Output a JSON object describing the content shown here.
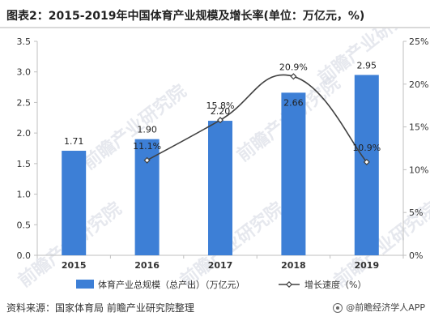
{
  "header": {
    "title": "图表2：2015-2019年中国体育产业规模及增长率(单位：万亿元，%)"
  },
  "chart_data": {
    "type": "bar",
    "categories": [
      "2015",
      "2016",
      "2017",
      "2018",
      "2019"
    ],
    "series": [
      {
        "name": "体育产业总规模（总产出）（万亿元）",
        "type": "bar",
        "axis": "left",
        "values": [
          1.71,
          1.9,
          2.2,
          2.66,
          2.95
        ],
        "labels": [
          "1.71",
          "1.90",
          "2.20",
          "2.66",
          "2.95"
        ],
        "color": "#3d7fd6"
      },
      {
        "name": "增长速度（%）",
        "type": "line",
        "axis": "right",
        "values": [
          null,
          11.1,
          15.8,
          20.9,
          10.9
        ],
        "labels": [
          "",
          "11.1%",
          "15.8%",
          "20.9%",
          "10.9%"
        ],
        "color": "#404040"
      }
    ],
    "y_left": {
      "ylim": [
        0,
        3.5
      ],
      "ticks": [
        "0.0",
        "0.5",
        "1.0",
        "1.5",
        "2.0",
        "2.5",
        "3.0",
        "3.5"
      ]
    },
    "y_right": {
      "ylim": [
        0,
        25
      ],
      "ticks": [
        "0%",
        "5%",
        "10%",
        "15%",
        "20%",
        "25%"
      ]
    },
    "grid": false,
    "legend": "bottom"
  },
  "watermark": {
    "text": "前瞻产业研究院"
  },
  "footer": {
    "source": "资料来源：国家体育局 前瞻产业研究院整理",
    "brand": "@前瞻经济学人APP"
  }
}
